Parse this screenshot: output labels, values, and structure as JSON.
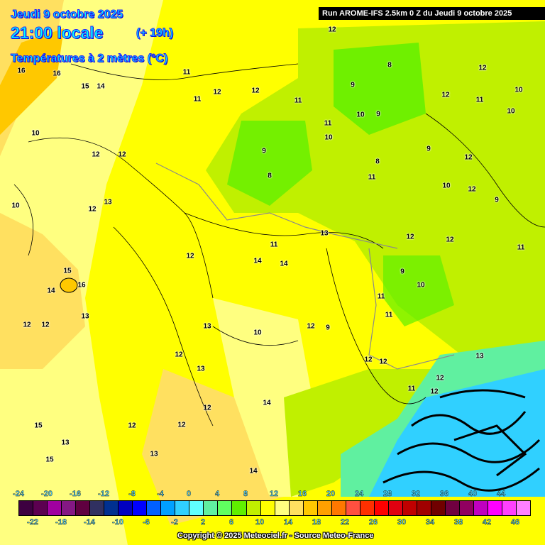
{
  "header": {
    "date": "Jeudi 9 octobre 2025",
    "time": "21:00 locale",
    "lead": "(+ 19h)",
    "parameter": "Températures à 2 mètres (°C)"
  },
  "run_label": "Run AROME-IFS 2.5km 0 Z du Jeudi 9 octobre 2025",
  "copyright": "Copyright © 2025 Meteociel.fr - Source Meteo-France",
  "colorbar": {
    "top_ticks": [
      "-24",
      "-20",
      "-16",
      "-12",
      "-8",
      "-4",
      "0",
      "4",
      "8",
      "12",
      "16",
      "20",
      "24",
      "28",
      "32",
      "36",
      "40",
      "44"
    ],
    "bottom_ticks": [
      "-22",
      "-18",
      "-14",
      "-10",
      "-6",
      "-2",
      "2",
      "6",
      "10",
      "14",
      "18",
      "22",
      "26",
      "30",
      "34",
      "38",
      "42",
      "46"
    ],
    "colors": [
      "#3d0040",
      "#5c0050",
      "#a000a0",
      "#841884",
      "#600040",
      "#303060",
      "#003090",
      "#0000c0",
      "#0000ff",
      "#0060ff",
      "#00a0ff",
      "#30d0ff",
      "#60ffff",
      "#60f0a0",
      "#60ff60",
      "#60f000",
      "#c0f000",
      "#ffff00",
      "#ffff80",
      "#ffe060",
      "#ffc800",
      "#ffa000",
      "#ff7800",
      "#ff5040",
      "#ff3000",
      "#ff0000",
      "#e00010",
      "#c00000",
      "#a00000",
      "#700000",
      "#700040",
      "#900060",
      "#c000c0",
      "#ff00ff",
      "#ff40ff",
      "#ff80ff"
    ]
  },
  "map_colors": {
    "base": "#ffff00",
    "mild": "#ffff80",
    "warm": "#ffe060",
    "warmer": "#ffc800",
    "cool": "#c0f000",
    "cold": "#60f000",
    "alps_cyan": "#30d0ff",
    "alps_dark": "#000000"
  },
  "contour_labels": [
    "16",
    "16",
    "15",
    "14",
    "10",
    "12",
    "12",
    "10",
    "12",
    "13",
    "15",
    "14",
    "16",
    "13",
    "12",
    "12",
    "13",
    "12",
    "13",
    "11",
    "11",
    "12",
    "12",
    "11",
    "11",
    "10",
    "9",
    "8",
    "9",
    "8",
    "9",
    "10",
    "12",
    "12",
    "8",
    "9",
    "11",
    "10",
    "12",
    "12",
    "10",
    "9",
    "12",
    "11",
    "10",
    "11",
    "12",
    "13",
    "11",
    "10",
    "9",
    "11",
    "11",
    "12",
    "13",
    "12",
    "9",
    "12",
    "11",
    "10",
    "12",
    "12",
    "12",
    "14",
    "13",
    "14",
    "12",
    "15",
    "13",
    "12",
    "12",
    "14",
    "14",
    "12",
    "15"
  ]
}
